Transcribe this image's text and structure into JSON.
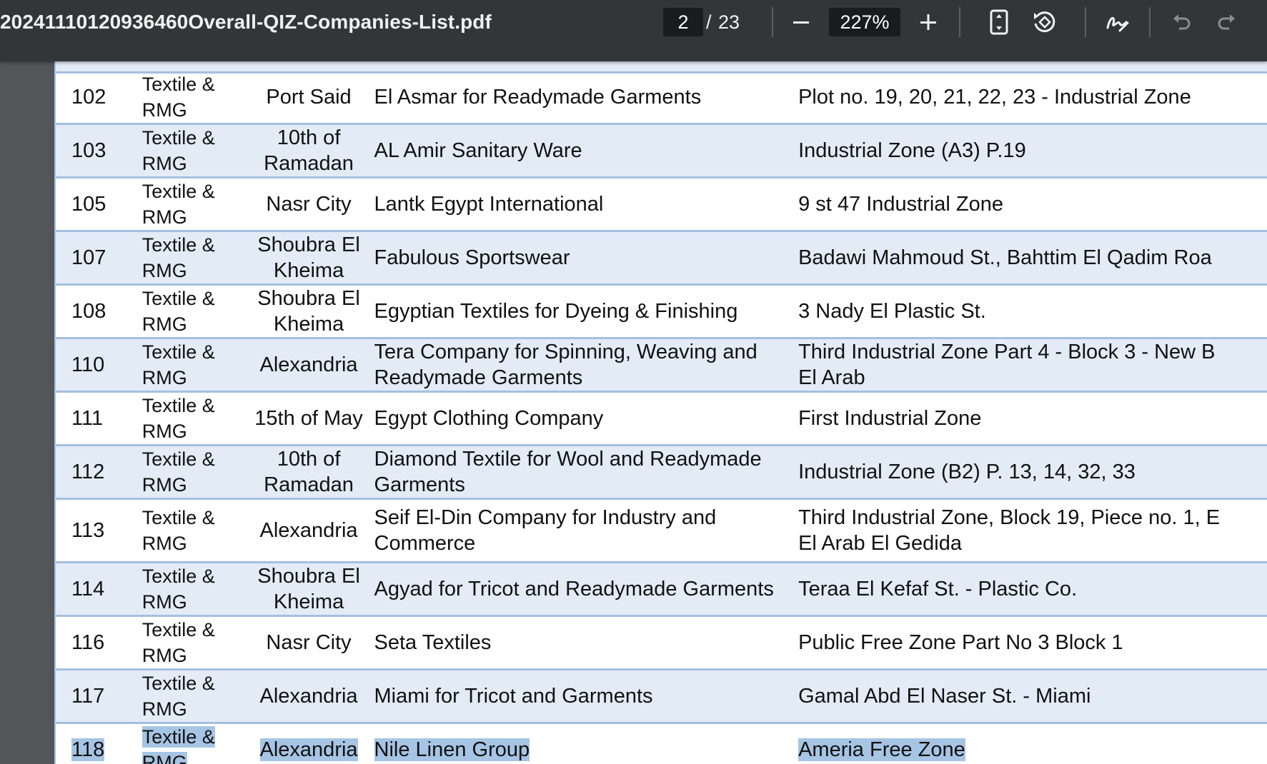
{
  "toolbar": {
    "file_name": "20241110120936460Overall-QIZ-Companies-List.pdf",
    "current_page": "2",
    "page_separator": "/",
    "total_pages": "23",
    "zoom": "227%",
    "icons": [
      "minus-icon",
      "plus-icon",
      "fit-page-icon",
      "rotate-icon",
      "draw-icon",
      "undo-icon",
      "redo-icon"
    ]
  },
  "colors": {
    "toolbar_bg": "#323639",
    "viewer_bg": "#525659",
    "row_alt": "#e2ebf6",
    "row_border": "#a4c0e0",
    "selection": "#a6c5e5"
  },
  "table": {
    "rows": [
      {
        "no": "102",
        "sector": "Textile & RMG",
        "city": "Port Said",
        "name": "El Asmar for Readymade Garments",
        "address": "Plot no. 19, 20, 21, 22, 23 - Industrial Zone"
      },
      {
        "no": "103",
        "sector": "Textile & RMG",
        "city": "10th of\nRamadan",
        "name": "AL Amir Sanitary Ware",
        "address": "Industrial Zone (A3) P.19"
      },
      {
        "no": "105",
        "sector": "Textile & RMG",
        "city": "Nasr City",
        "name": "Lantk Egypt International",
        "address": "9 st 47 Industrial Zone"
      },
      {
        "no": "107",
        "sector": "Textile & RMG",
        "city": "Shoubra El\nKheima",
        "name": "Fabulous Sportswear",
        "address": "Badawi Mahmoud St., Bahttim El Qadim Roa"
      },
      {
        "no": "108",
        "sector": "Textile & RMG",
        "city": "Shoubra El\nKheima",
        "name": "Egyptian Textiles for Dyeing & Finishing",
        "address": "3 Nady El Plastic St."
      },
      {
        "no": "110",
        "sector": "Textile & RMG",
        "city": "Alexandria",
        "name": "Tera Company for Spinning, Weaving and\nReadymade Garments",
        "address": "Third Industrial Zone Part 4 - Block 3 - New B\nEl Arab"
      },
      {
        "no": "111",
        "sector": "Textile & RMG",
        "city": "15th of May",
        "name": "Egypt Clothing Company",
        "address": "First Industrial Zone"
      },
      {
        "no": "112",
        "sector": "Textile & RMG",
        "city": "10th of\nRamadan",
        "name": "Diamond Textile for Wool and Readymade\nGarments",
        "address": "Industrial Zone (B2) P. 13, 14, 32, 33"
      },
      {
        "no": "113",
        "sector": "Textile & RMG",
        "city": "Alexandria",
        "name": "Seif El-Din Company for Industry and\nCommerce",
        "address": "Third Industrial Zone, Block 19, Piece no. 1, E\nEl Arab El Gedida"
      },
      {
        "no": "114",
        "sector": "Textile & RMG",
        "city": "Shoubra El\nKheima",
        "name": "Agyad for Tricot and Readymade Garments",
        "address": "Teraa El Kefaf St. - Plastic Co."
      },
      {
        "no": "116",
        "sector": "Textile & RMG",
        "city": "Nasr City",
        "name": "Seta Textiles",
        "address": "Public Free Zone Part No 3 Block 1"
      },
      {
        "no": "117",
        "sector": "Textile & RMG",
        "city": "Alexandria",
        "name": "Miami for Tricot and Garments",
        "address": "Gamal Abd El Naser St. - Miami"
      },
      {
        "no": "118",
        "sector": "Textile & RMG",
        "city": "Alexandria",
        "name": "Nile Linen Group",
        "address": "Ameria Free Zone"
      }
    ]
  }
}
